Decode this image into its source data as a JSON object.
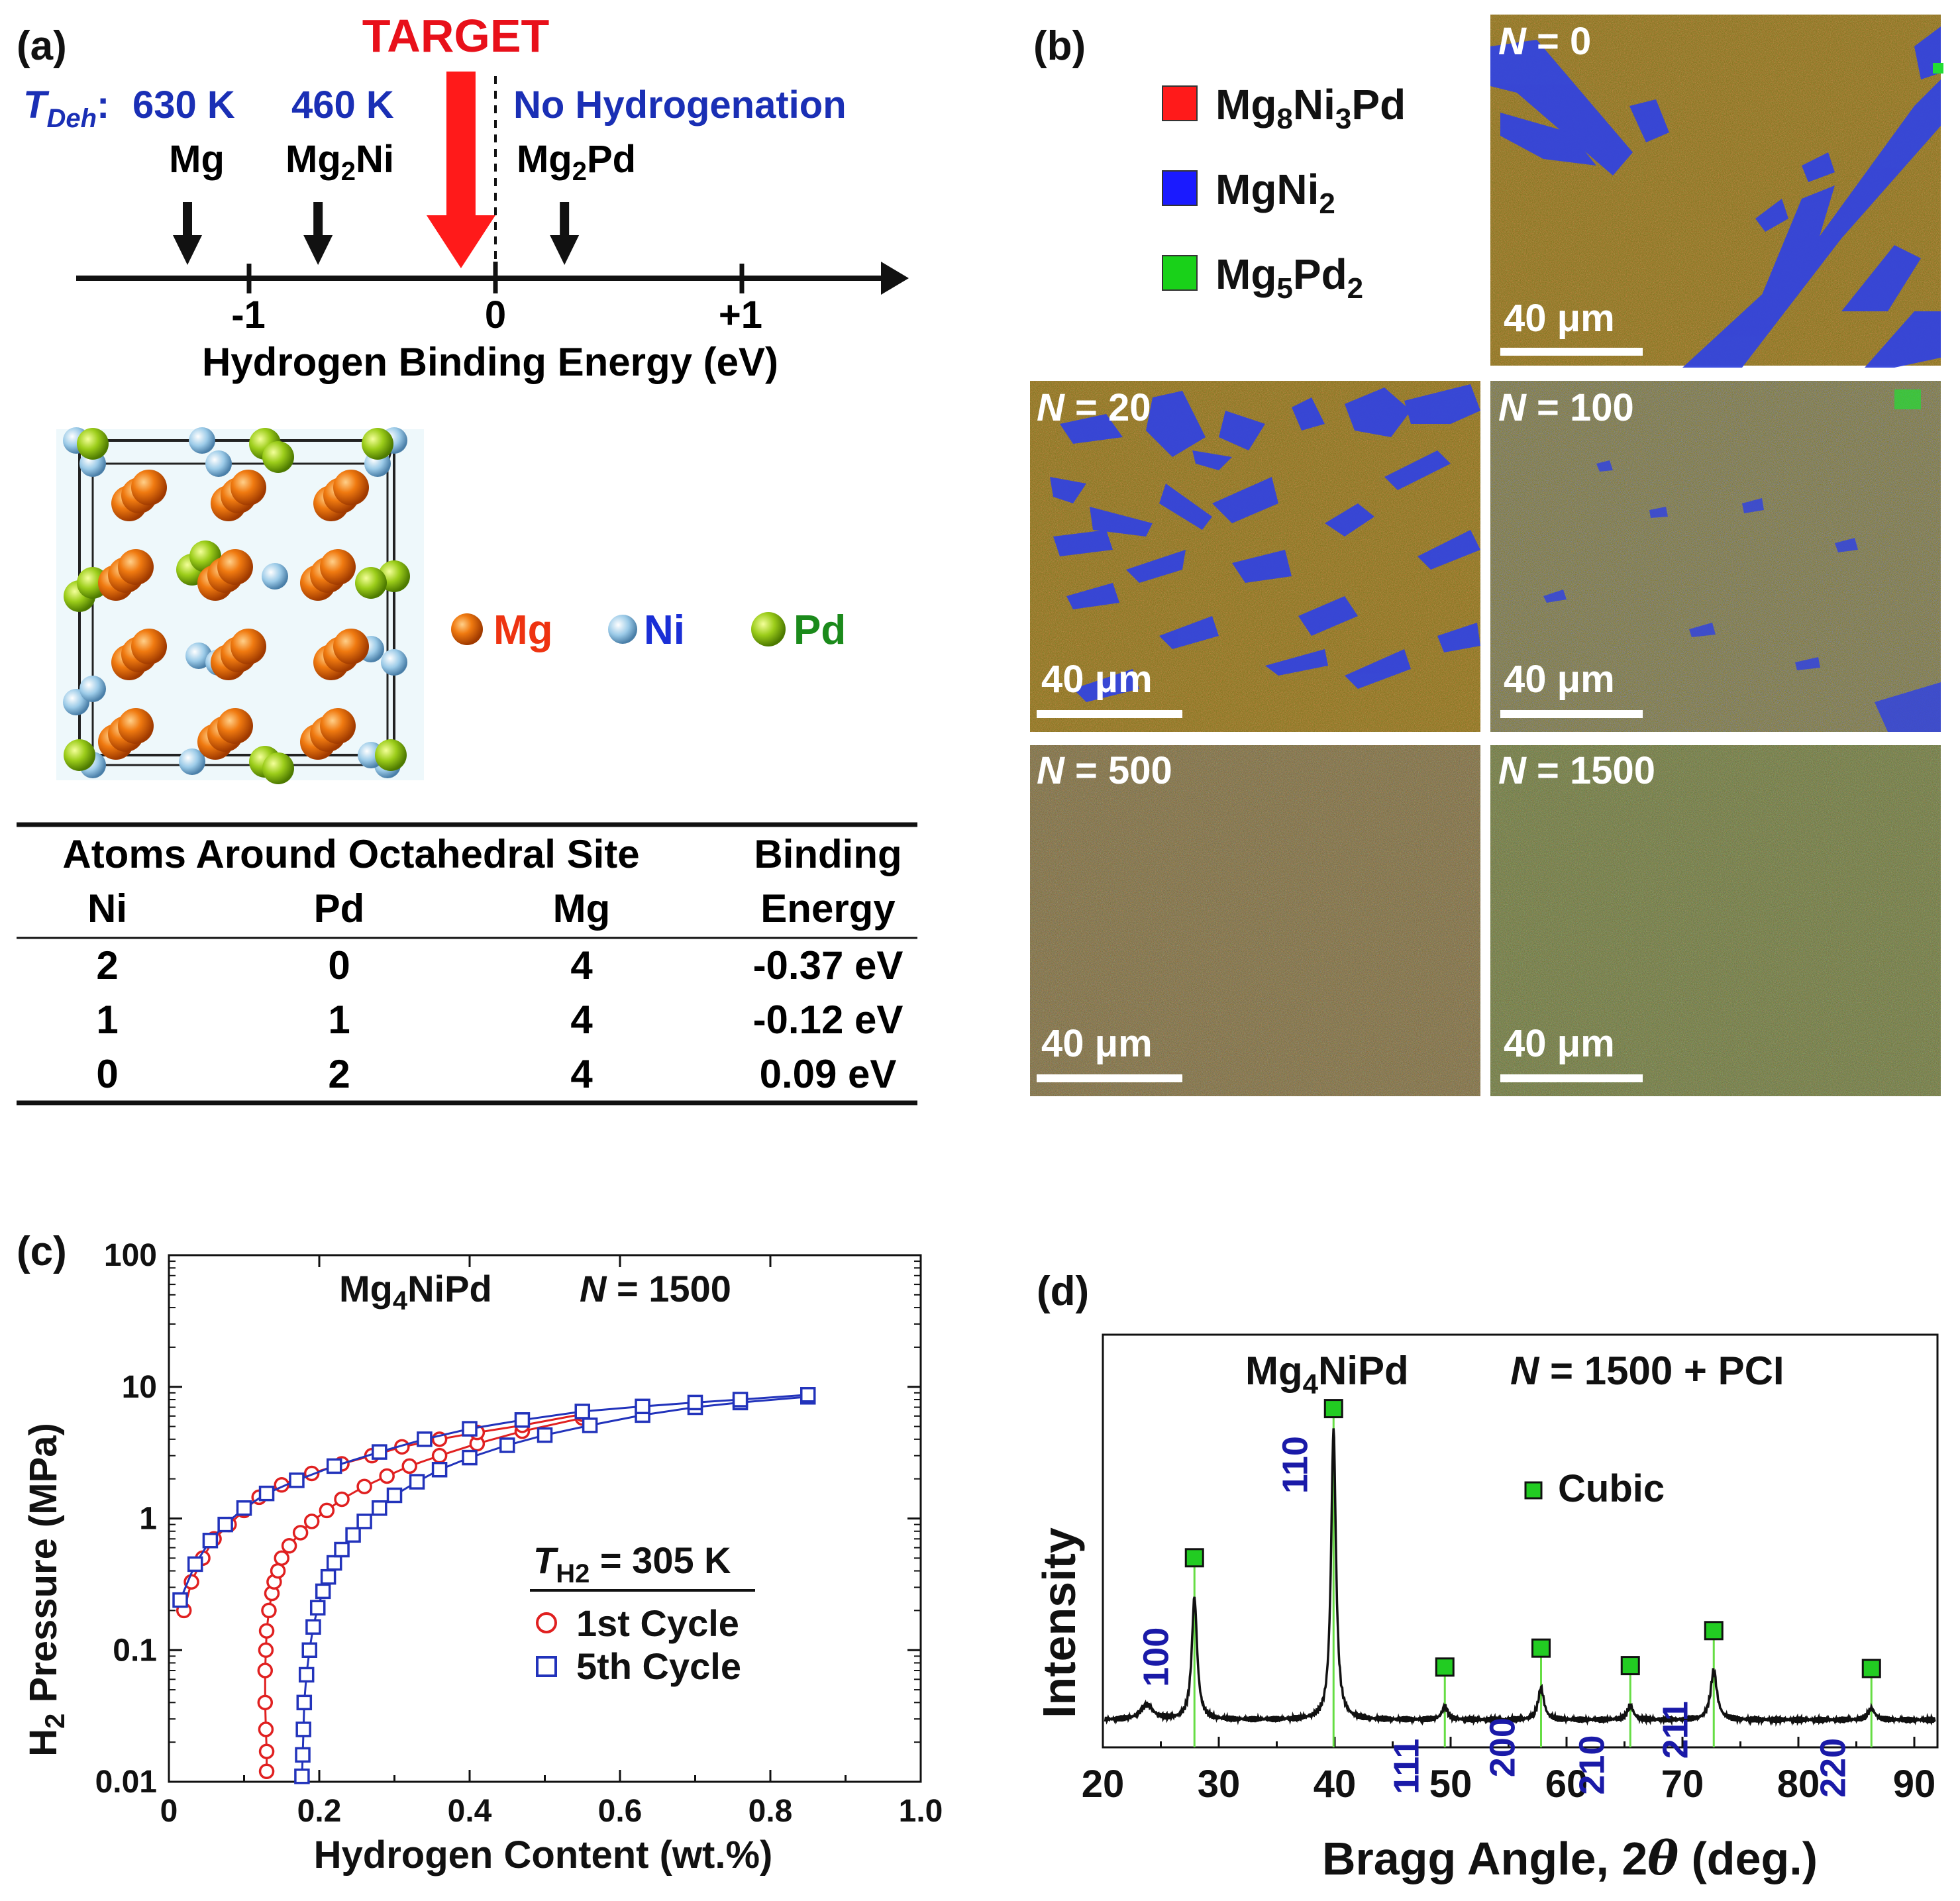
{
  "figure_label_a": "(a)",
  "figure_label_b": "(b)",
  "figure_label_c": "(c)",
  "figure_label_d": "(d)",
  "panel_a": {
    "tdeh_symbol": "T",
    "tdeh_sub": "Deh",
    "tdeh_colon": ":",
    "temp_mg": "630 K",
    "temp_mg2ni": "460 K",
    "no_hydrogenation": "No Hydrogenation",
    "target": "TARGET",
    "markers": [
      {
        "base": "Mg",
        "sub": "",
        "tail": "",
        "energy": -1.25
      },
      {
        "base": "Mg",
        "sub": "2",
        "tail": "Ni",
        "energy": -0.72
      },
      {
        "base": "Mg",
        "sub": "2",
        "tail": "Pd",
        "energy": 0.28
      }
    ],
    "target_energy": -0.14,
    "axis_ticks": [
      "-1",
      "0",
      "+1"
    ],
    "axis_title": "Hydrogen Binding Energy (eV)",
    "crystal_legend": [
      {
        "label": "Mg",
        "color": "#ee3311"
      },
      {
        "label": "Ni",
        "color": "#1a2fd6"
      },
      {
        "label": "Pd",
        "color": "#1b8a1b"
      }
    ],
    "table": {
      "header_group": "Atoms Around Octahedral Site",
      "header_binding_1": "Binding",
      "header_binding_2": "Energy",
      "columns": [
        "Ni",
        "Pd",
        "Mg"
      ],
      "rows": [
        [
          "2",
          "0",
          "4",
          "-0.37 eV"
        ],
        [
          "1",
          "1",
          "4",
          "-0.12 eV"
        ],
        [
          "0",
          "2",
          "4",
          "0.09 eV"
        ]
      ]
    }
  },
  "panel_b": {
    "legend": [
      {
        "base": "Mg",
        "s1": "8",
        "mid": "Ni",
        "s2": "3",
        "tail": "Pd",
        "color": "#ff1a1a"
      },
      {
        "base": "MgNi",
        "s1": "2",
        "mid": "",
        "s2": "",
        "tail": "",
        "color": "#1a1aff"
      },
      {
        "base": "Mg",
        "s1": "5",
        "mid": "Pd",
        "s2": "2",
        "tail": "",
        "color": "#19d119"
      }
    ],
    "maps": [
      {
        "n_label": "N",
        "n_value": "= 0",
        "scale": "40 μm"
      },
      {
        "n_label": "N",
        "n_value": "= 20",
        "scale": "40 μm"
      },
      {
        "n_label": "N",
        "n_value": "= 100",
        "scale": "40 μm"
      },
      {
        "n_label": "N",
        "n_value": "= 500",
        "scale": "40 μm"
      },
      {
        "n_label": "N",
        "n_value": "= 1500",
        "scale": "40 μm"
      }
    ]
  },
  "panel_c": {
    "title_base": "Mg",
    "title_sub": "4",
    "title_tail": "NiPd",
    "title_n_label": "N",
    "title_n_value": "= 1500",
    "legend_title_sym": "T",
    "legend_title_sub": "H2",
    "legend_title_value": "= 305 K",
    "legend_series": [
      "1st Cycle",
      "5th Cycle"
    ],
    "ylabel_base": "H",
    "ylabel_sub": "2",
    "ylabel_tail": " Pressure (MPa)",
    "xlabel": "Hydrogen Content (wt.%)",
    "x_ticks": [
      "0",
      "0.2",
      "0.4",
      "0.6",
      "0.8",
      "1.0"
    ],
    "y_ticks": [
      "0.01",
      "0.1",
      "1",
      "10",
      "100"
    ]
  },
  "panel_d": {
    "title_base": "Mg",
    "title_sub": "4",
    "title_tail": "NiPd",
    "title_n_label": "N",
    "title_n_value": "= 1500 + PCI",
    "legend": "Cubic",
    "ylabel": "Intensity",
    "xlabel_pre": "Bragg Angle, 2",
    "xlabel_theta": "θ",
    "xlabel_post": " (deg.)",
    "x_ticks": [
      "20",
      "30",
      "40",
      "50",
      "60",
      "70",
      "80",
      "90"
    ]
  },
  "chart_data": [
    {
      "type": "line",
      "title": "Mg4NiPd N = 1500",
      "xlabel": "Hydrogen Content (wt.%)",
      "ylabel": "H2 Pressure (MPa)",
      "xlim": [
        0,
        1.0
      ],
      "ylim": [
        0.01,
        100
      ],
      "yscale": "log",
      "series": [
        {
          "name": "1st Cycle",
          "color": "#e02020",
          "marker": "circle",
          "absorption": [
            [
              0.13,
              0.012
            ],
            [
              0.13,
              0.017
            ],
            [
              0.129,
              0.025
            ],
            [
              0.128,
              0.04
            ],
            [
              0.128,
              0.07
            ],
            [
              0.129,
              0.1
            ],
            [
              0.13,
              0.14
            ],
            [
              0.133,
              0.2
            ],
            [
              0.137,
              0.27
            ],
            [
              0.14,
              0.33
            ],
            [
              0.145,
              0.4
            ],
            [
              0.15,
              0.5
            ],
            [
              0.16,
              0.62
            ],
            [
              0.175,
              0.78
            ],
            [
              0.19,
              0.95
            ],
            [
              0.21,
              1.15
            ],
            [
              0.23,
              1.4
            ],
            [
              0.26,
              1.75
            ],
            [
              0.29,
              2.1
            ],
            [
              0.32,
              2.5
            ],
            [
              0.36,
              3.0
            ],
            [
              0.41,
              3.7
            ],
            [
              0.47,
              4.6
            ],
            [
              0.55,
              5.8
            ]
          ],
          "desorption": [
            [
              0.55,
              6.2
            ],
            [
              0.47,
              5.1
            ],
            [
              0.41,
              4.5
            ],
            [
              0.36,
              4.0
            ],
            [
              0.31,
              3.5
            ],
            [
              0.27,
              3.0
            ],
            [
              0.23,
              2.6
            ],
            [
              0.19,
              2.2
            ],
            [
              0.15,
              1.8
            ],
            [
              0.12,
              1.45
            ],
            [
              0.1,
              1.15
            ],
            [
              0.08,
              0.9
            ],
            [
              0.06,
              0.7
            ],
            [
              0.045,
              0.5
            ],
            [
              0.03,
              0.33
            ],
            [
              0.02,
              0.2
            ]
          ]
        },
        {
          "name": "5th Cycle",
          "color": "#2233bb",
          "marker": "square",
          "absorption": [
            [
              0.177,
              0.011
            ],
            [
              0.178,
              0.016
            ],
            [
              0.179,
              0.025
            ],
            [
              0.18,
              0.04
            ],
            [
              0.183,
              0.065
            ],
            [
              0.187,
              0.1
            ],
            [
              0.192,
              0.15
            ],
            [
              0.198,
              0.21
            ],
            [
              0.205,
              0.28
            ],
            [
              0.212,
              0.36
            ],
            [
              0.22,
              0.46
            ],
            [
              0.23,
              0.58
            ],
            [
              0.245,
              0.75
            ],
            [
              0.26,
              0.95
            ],
            [
              0.28,
              1.2
            ],
            [
              0.3,
              1.5
            ],
            [
              0.33,
              1.9
            ],
            [
              0.36,
              2.35
            ],
            [
              0.4,
              2.9
            ],
            [
              0.45,
              3.6
            ],
            [
              0.5,
              4.3
            ],
            [
              0.56,
              5.1
            ],
            [
              0.63,
              6.1
            ],
            [
              0.7,
              7.0
            ],
            [
              0.76,
              7.6
            ],
            [
              0.85,
              8.4
            ]
          ],
          "desorption": [
            [
              0.85,
              8.7
            ],
            [
              0.76,
              8.0
            ],
            [
              0.7,
              7.6
            ],
            [
              0.63,
              7.1
            ],
            [
              0.55,
              6.5
            ],
            [
              0.47,
              5.6
            ],
            [
              0.4,
              4.8
            ],
            [
              0.34,
              4.0
            ],
            [
              0.28,
              3.2
            ],
            [
              0.22,
              2.5
            ],
            [
              0.17,
              1.95
            ],
            [
              0.13,
              1.55
            ],
            [
              0.1,
              1.2
            ],
            [
              0.075,
              0.9
            ],
            [
              0.055,
              0.68
            ],
            [
              0.035,
              0.45
            ],
            [
              0.015,
              0.24
            ]
          ]
        }
      ]
    },
    {
      "type": "line",
      "title": "Mg4NiPd N = 1500 + PCI",
      "xlabel": "Bragg Angle, 2θ (deg.)",
      "ylabel": "Intensity",
      "xlim": [
        20,
        92
      ],
      "series": [
        {
          "name": "XRD pattern",
          "color": "#111111",
          "baseline": 0.06,
          "peaks": [
            {
              "x": 23.8,
              "height": 0.05,
              "width": 1.3
            },
            {
              "x": 27.9,
              "height": 0.42,
              "width": 0.55
            },
            {
              "x": 39.9,
              "height": 1.0,
              "width": 0.5
            },
            {
              "x": 49.5,
              "height": 0.045,
              "width": 0.6
            },
            {
              "x": 57.8,
              "height": 0.11,
              "width": 0.6
            },
            {
              "x": 65.5,
              "height": 0.05,
              "width": 0.6
            },
            {
              "x": 72.7,
              "height": 0.17,
              "width": 0.65
            },
            {
              "x": 86.3,
              "height": 0.04,
              "width": 0.7
            }
          ]
        }
      ],
      "cubic_reflections": [
        {
          "hkl": "100",
          "x": 27.9
        },
        {
          "hkl": "110",
          "x": 39.9
        },
        {
          "hkl": "111",
          "x": 49.5
        },
        {
          "hkl": "200",
          "x": 57.8
        },
        {
          "hkl": "210",
          "x": 65.5
        },
        {
          "hkl": "211",
          "x": 72.7
        },
        {
          "hkl": "220",
          "x": 86.3
        }
      ],
      "legend": "Cubic"
    }
  ]
}
